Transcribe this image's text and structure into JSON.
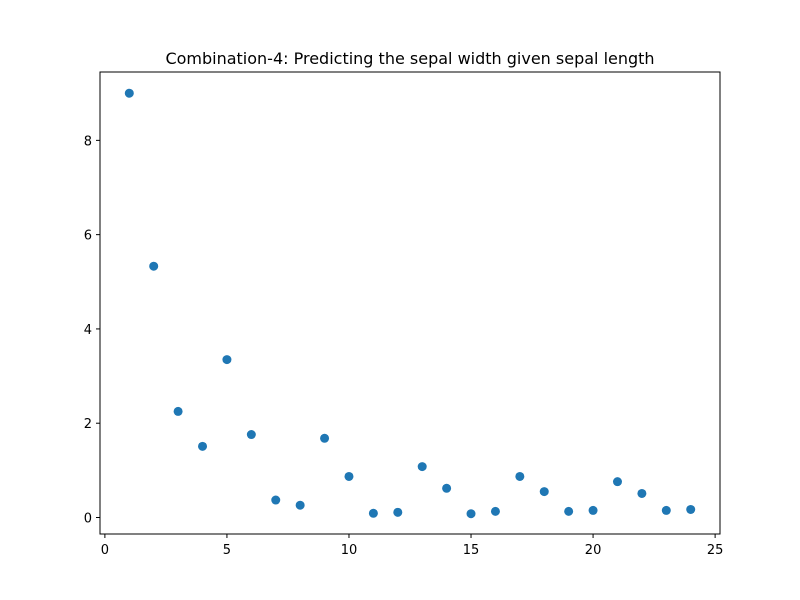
{
  "chart_data": {
    "type": "scatter",
    "title": "Combination-4: Predicting the sepal width given sepal length",
    "xlabel": "",
    "ylabel": "",
    "xlim": [
      -0.2,
      25.2
    ],
    "ylim": [
      -0.35,
      9.45
    ],
    "x_ticks": [
      0,
      5,
      10,
      15,
      20,
      25
    ],
    "y_ticks": [
      0,
      2,
      4,
      6,
      8
    ],
    "grid": false,
    "color": "#1f77b4",
    "series": [
      {
        "x": [
          1,
          2,
          3,
          4,
          5,
          6,
          7,
          8,
          9,
          10,
          11,
          12,
          13,
          14,
          15,
          16,
          17,
          18,
          19,
          20,
          21,
          22,
          23,
          24
        ],
        "y": [
          9.0,
          5.33,
          2.25,
          1.51,
          3.35,
          1.76,
          0.37,
          0.26,
          1.68,
          0.87,
          0.09,
          0.11,
          1.08,
          0.62,
          0.08,
          0.13,
          0.87,
          0.55,
          0.13,
          0.15,
          0.76,
          0.51,
          0.15,
          0.17
        ]
      }
    ]
  }
}
